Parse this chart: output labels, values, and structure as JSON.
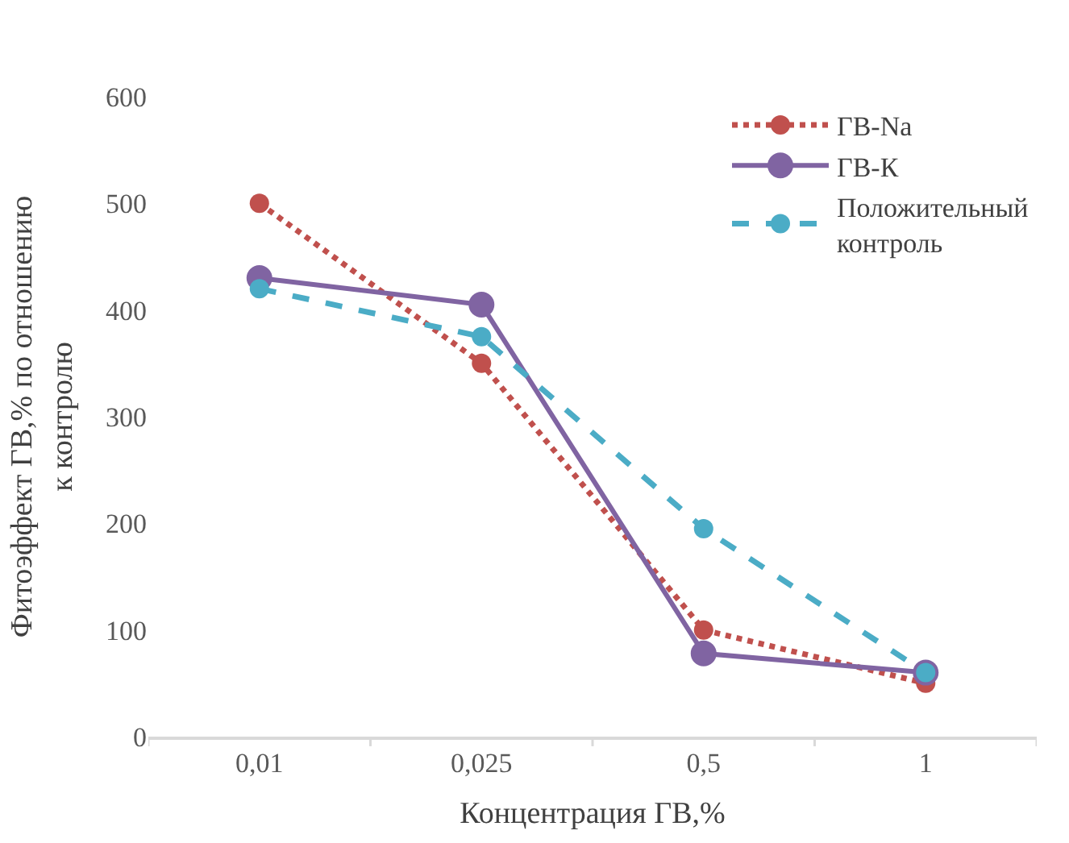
{
  "chart_data": {
    "type": "line",
    "xlabel": "Концентрация ГВ,%",
    "ylabel": "Фитоэффект ГВ,% по отношению\nк контролю",
    "categories": [
      "0,01",
      "0,025",
      "0,5",
      "1"
    ],
    "ylim": [
      0,
      600
    ],
    "yticks": [
      0,
      100,
      200,
      300,
      400,
      500,
      600
    ],
    "legend": "top right",
    "marker": "circle",
    "series": [
      {
        "name": "ГВ-Na",
        "color": "#c0504d",
        "line_style": "dotted",
        "values": [
          500,
          350,
          100,
          50
        ]
      },
      {
        "name": "ГВ-К",
        "color": "#8064a2",
        "line_style": "solid",
        "values": [
          430,
          405,
          78,
          60
        ]
      },
      {
        "name": "Положительный\nконтроль",
        "color": "#4bacc6",
        "line_style": "dashed",
        "values": [
          420,
          375,
          195,
          60
        ]
      }
    ]
  }
}
